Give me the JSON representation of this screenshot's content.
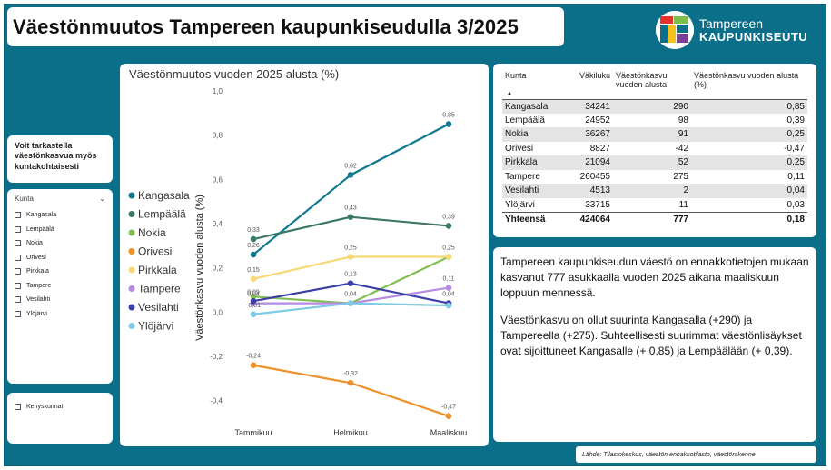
{
  "title": "Väestönmuutos Tampereen kaupunkiseudulla  3/2025",
  "logo": {
    "line1": "Tampereen",
    "line2": "KAUPUNKISEUTU"
  },
  "info_text": "Voit tarkastella väestönkasvua myös kuntakohtaisesti",
  "slicer": {
    "header": "Kunta",
    "chevron": "chevron-down-icon",
    "items": [
      "Kangasala",
      "Lempäälä",
      "Nokia",
      "Orivesi",
      "Pirkkala",
      "Tampere",
      "Vesilahti",
      "Ylöjärvi"
    ]
  },
  "region_slicer": {
    "label": "Kehyskunnat"
  },
  "table": {
    "headers": [
      "Kunta",
      "Väkiluku",
      "Väestönkasvu vuoden alusta",
      "Väestönkasvu vuoden alusta (%)"
    ],
    "rows": [
      [
        "Kangasala",
        "34241",
        "290",
        "0,85"
      ],
      [
        "Lempäälä",
        "24952",
        "98",
        "0,39"
      ],
      [
        "Nokia",
        "36267",
        "91",
        "0,25"
      ],
      [
        "Orivesi",
        "8827",
        "-42",
        "-0,47"
      ],
      [
        "Pirkkala",
        "21094",
        "52",
        "0,25"
      ],
      [
        "Tampere",
        "260455",
        "275",
        "0,11"
      ],
      [
        "Vesilahti",
        "4513",
        "2",
        "0,04"
      ],
      [
        "Ylöjärvi",
        "33715",
        "11",
        "0,03"
      ]
    ],
    "total": [
      "Yhteensä",
      "424064",
      "777",
      "0,18"
    ]
  },
  "text": {
    "p1": "Tampereen kaupunkiseudun väestö on ennakkotietojen mukaan kasvanut 777 asukkaalla vuoden 2025 aikana maaliskuun loppuun mennessä.",
    "p2": "Väestönkasvu on ollut suurinta Kangasalla (+290) ja Tampereella (+275). Suhteellisesti suurimmat väestönlisäykset ovat sijoittuneet Kangasalle  (+ 0,85) ja Lempäälään (+ 0,39)."
  },
  "source": "Lähde: Tilastokeskus, väestön ennakkotilasto, väestörakenne",
  "chart_data": {
    "type": "line",
    "title": "Väestönmuutos vuoden 2025 alusta (%)",
    "ylabel": "Väestönkasvu vuoden alusta (%)",
    "xlabel": "",
    "categories": [
      "Tammikuu",
      "Helmikuu",
      "Maaliskuu"
    ],
    "ylim": [
      -0.5,
      1.0
    ],
    "yticks": [
      -0.4,
      -0.2,
      0.0,
      0.2,
      0.4,
      0.6,
      0.8,
      1.0
    ],
    "ytick_labels": [
      "-0,4",
      "-0,2",
      "0,0",
      "0,2",
      "0,4",
      "0,6",
      "0,8",
      "1,0"
    ],
    "legend_position": "left",
    "grid": false,
    "series": [
      {
        "name": "Kangasala",
        "color": "#11798f",
        "values": [
          0.26,
          0.62,
          0.85
        ],
        "labels": [
          "0,26",
          "0,62",
          "0,85"
        ]
      },
      {
        "name": "Lempäälä",
        "color": "#3c7866",
        "values": [
          0.33,
          0.43,
          0.39
        ],
        "labels": [
          "0,33",
          "0,43",
          "0,39"
        ]
      },
      {
        "name": "Nokia",
        "color": "#82bf52",
        "values": [
          0.07,
          0.04,
          0.25
        ],
        "labels": [
          "",
          "",
          ""
        ]
      },
      {
        "name": "Orivesi",
        "color": "#f0922a",
        "values": [
          -0.24,
          -0.32,
          -0.47
        ],
        "labels": [
          "-0,24",
          "-0,32",
          "-0,47"
        ]
      },
      {
        "name": "Pirkkala",
        "color": "#f7d978",
        "values": [
          0.15,
          0.25,
          0.25
        ],
        "labels": [
          "0,15",
          "0,25",
          "0,25"
        ]
      },
      {
        "name": "Tampere",
        "color": "#b78ce0",
        "values": [
          0.04,
          0.04,
          0.11
        ],
        "labels": [
          "0,04",
          "0,04",
          "0,11"
        ]
      },
      {
        "name": "Vesilahti",
        "color": "#3b3fa8",
        "values": [
          0.05,
          0.13,
          0.04
        ],
        "labels": [
          "",
          "0,13",
          "0,04"
        ]
      },
      {
        "name": "Ylöjärvi",
        "color": "#7dcbe5",
        "values": [
          -0.01,
          0.04,
          0.03
        ],
        "labels": [
          "-0,01",
          "",
          ""
        ]
      }
    ],
    "extra_labels": [
      {
        "category": "Tammikuu",
        "value": 0.09,
        "text": "0,09"
      }
    ]
  }
}
